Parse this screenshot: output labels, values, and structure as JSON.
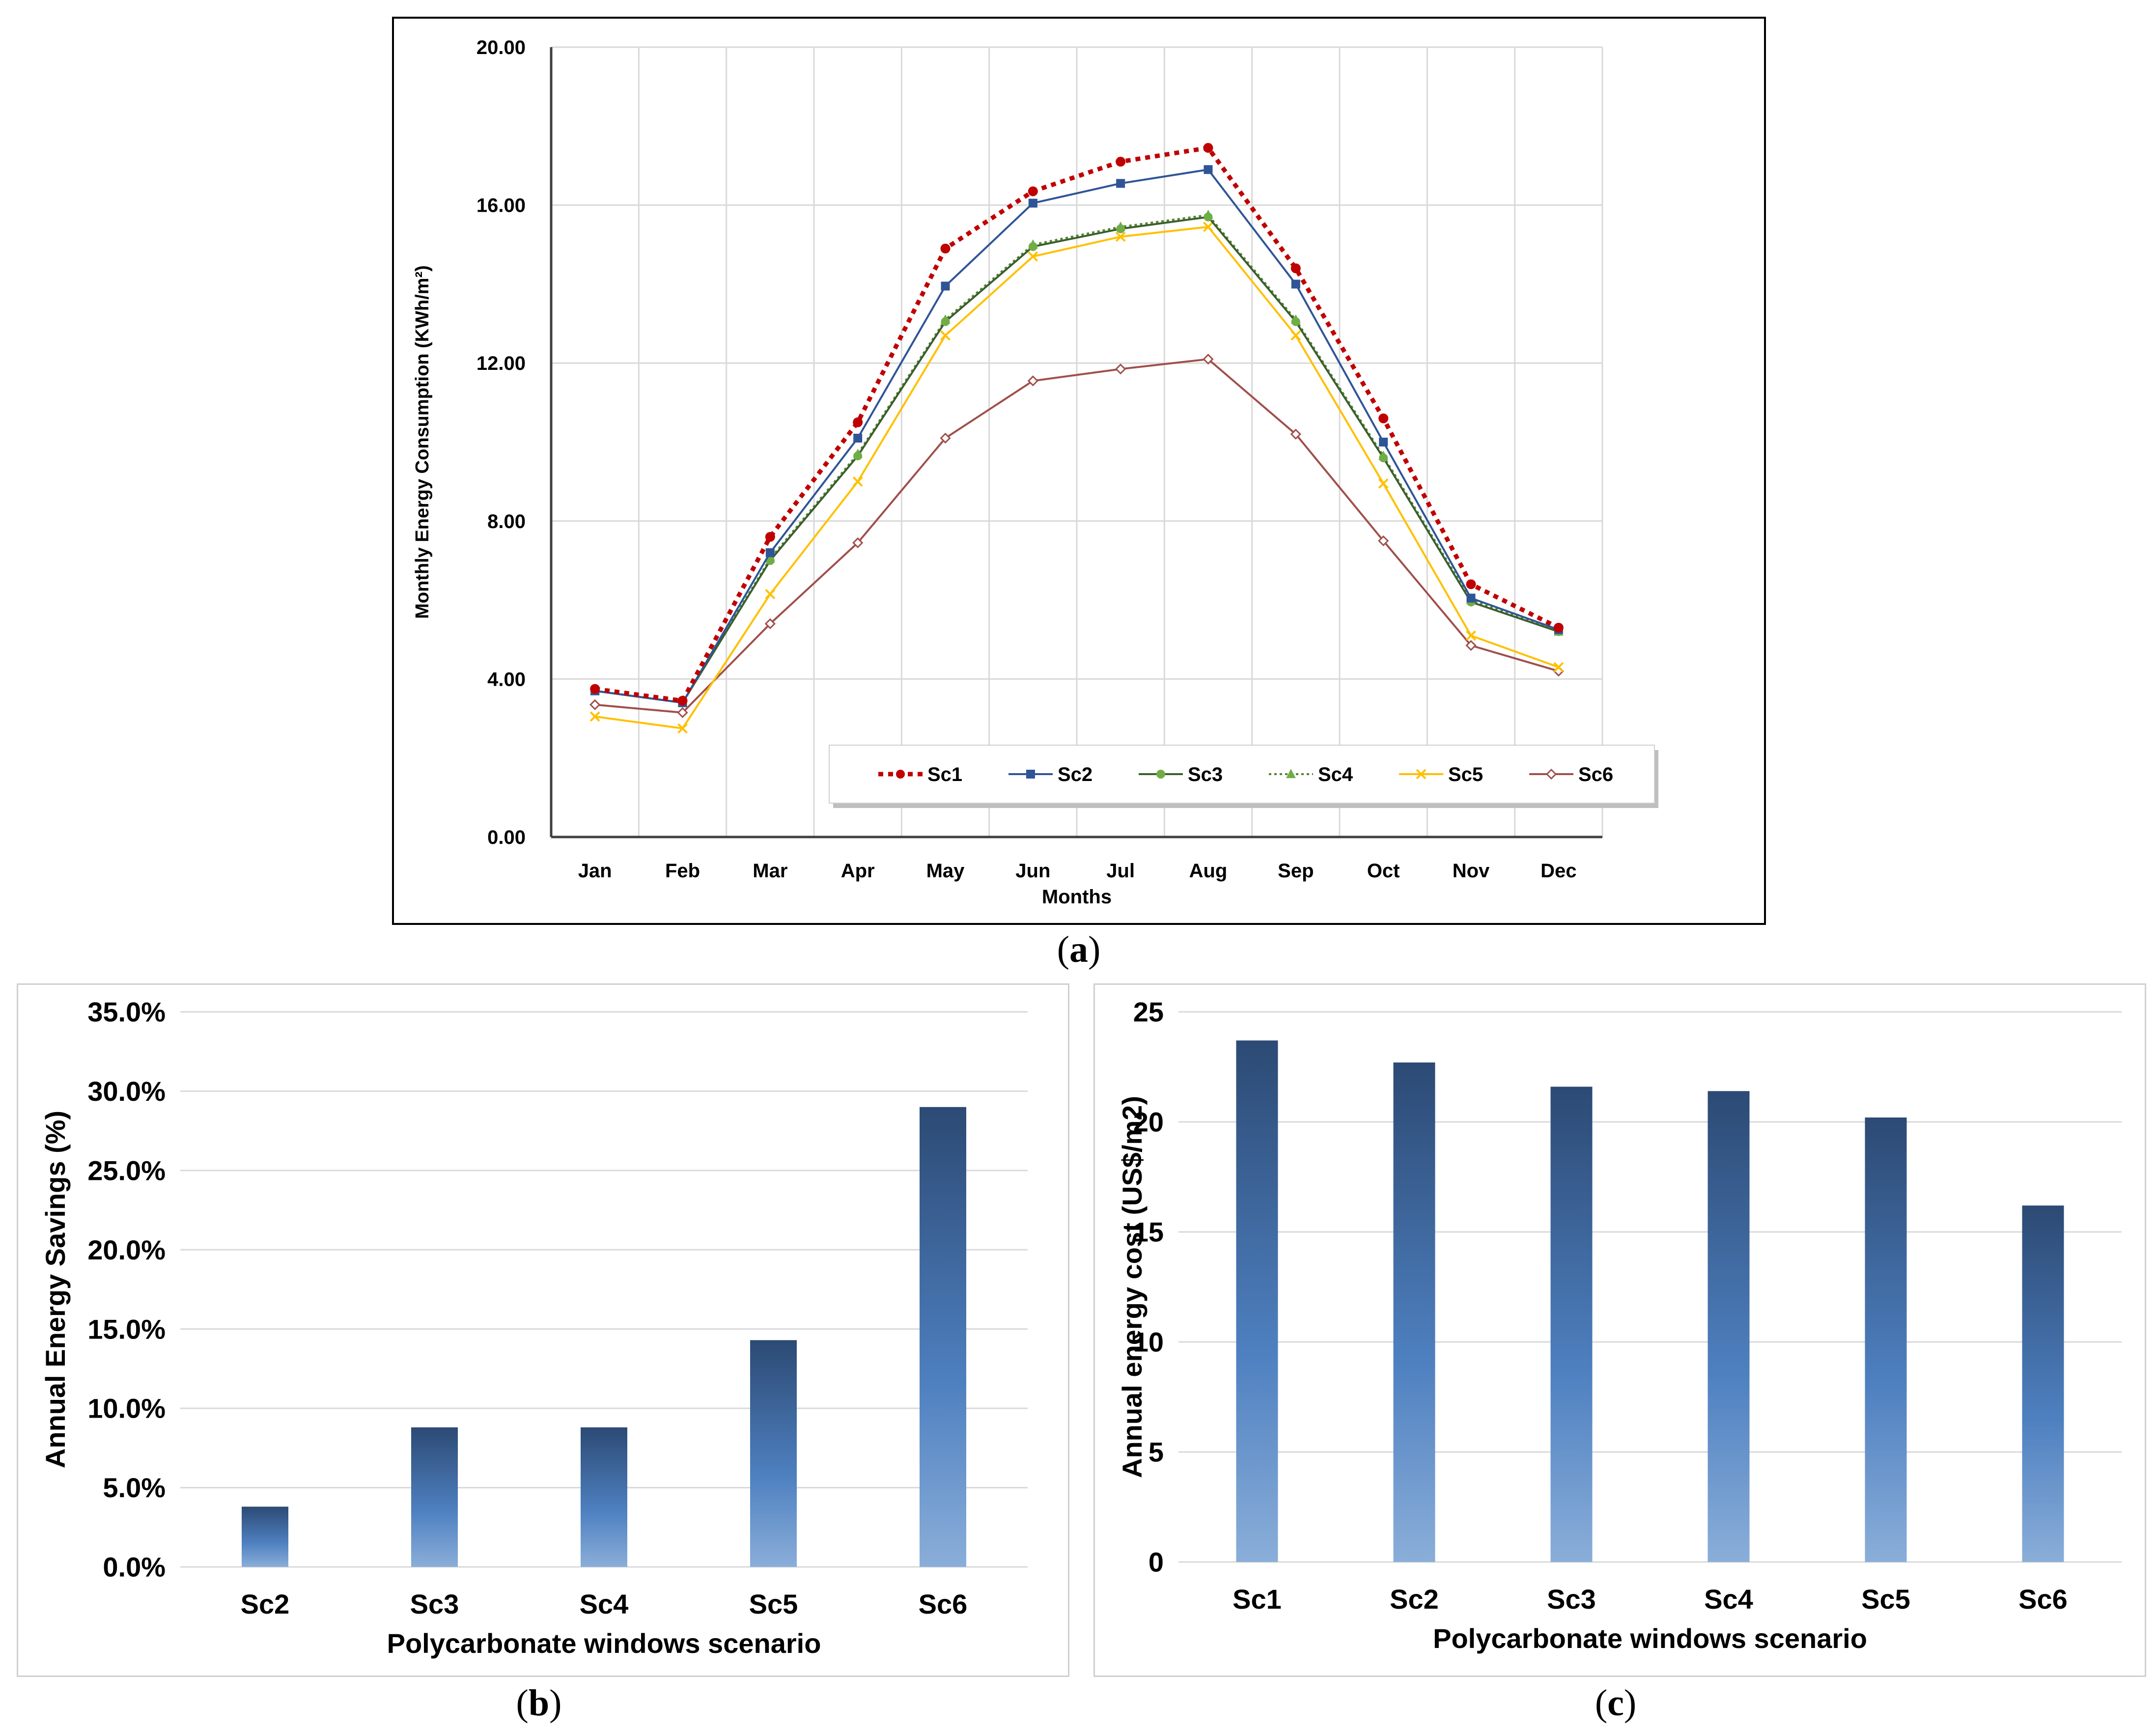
{
  "captions": {
    "a": "a",
    "b": "b",
    "c": "c"
  },
  "chart_data": [
    {
      "id": "a",
      "type": "line",
      "xlabel": "Months",
      "ylabel": "Monthly Energy Consumption (KWh/m²)",
      "ylim": [
        0,
        20
      ],
      "yticks": [
        "0.00",
        "4.00",
        "8.00",
        "12.00",
        "16.00",
        "20.00"
      ],
      "grid": true,
      "legend_position": "bottom inside plot",
      "categories": [
        "Jan",
        "Feb",
        "Mar",
        "Apr",
        "May",
        "Jun",
        "Jul",
        "Aug",
        "Sep",
        "Oct",
        "Nov",
        "Dec"
      ],
      "series": [
        {
          "name": "Sc1",
          "color": "#c00000",
          "marker": "circle",
          "dash": true,
          "values": [
            3.75,
            3.45,
            7.6,
            10.5,
            14.9,
            16.35,
            17.1,
            17.45,
            14.4,
            10.6,
            6.4,
            5.3
          ]
        },
        {
          "name": "Sc2",
          "color": "#2f5597",
          "marker": "square",
          "dash": false,
          "values": [
            3.7,
            3.4,
            7.2,
            10.1,
            13.95,
            16.05,
            16.55,
            16.9,
            14.0,
            10.0,
            6.05,
            5.25
          ]
        },
        {
          "name": "Sc3",
          "color": "#3a5f2a",
          "marker": "circle",
          "mcolor": "#70ad47",
          "dash": false,
          "values": [
            3.7,
            3.4,
            7.0,
            9.65,
            13.05,
            14.95,
            15.4,
            15.7,
            13.05,
            9.6,
            5.95,
            5.2
          ]
        },
        {
          "name": "Sc4",
          "color": "#548235",
          "marker": "triangle",
          "mcolor": "#70ad47",
          "dash": "dot",
          "values": [
            3.7,
            3.4,
            7.05,
            9.7,
            13.1,
            15.0,
            15.45,
            15.75,
            13.1,
            9.65,
            6.0,
            5.2
          ]
        },
        {
          "name": "Sc5",
          "color": "#ffc000",
          "marker": "x",
          "dash": false,
          "values": [
            3.05,
            2.75,
            6.15,
            9.0,
            12.7,
            14.7,
            15.2,
            15.45,
            12.7,
            8.95,
            5.1,
            4.3
          ]
        },
        {
          "name": "Sc6",
          "color": "#a04f4b",
          "marker": "diamond",
          "dash": false,
          "values": [
            3.35,
            3.15,
            5.4,
            7.45,
            10.1,
            11.55,
            11.85,
            12.1,
            10.2,
            7.5,
            4.85,
            4.2
          ]
        }
      ]
    },
    {
      "id": "b",
      "type": "bar",
      "xlabel": "Polycarbonate windows scenario",
      "ylabel": "Annual Energy Savings (%)",
      "ylim": [
        0,
        35
      ],
      "yticks": [
        "0.0%",
        "5.0%",
        "10.0%",
        "15.0%",
        "20.0%",
        "25.0%",
        "30.0%",
        "35.0%"
      ],
      "grid": true,
      "categories": [
        "Sc2",
        "Sc3",
        "Sc4",
        "Sc5",
        "Sc6"
      ],
      "values": [
        3.8,
        8.8,
        8.8,
        14.3,
        29.0
      ]
    },
    {
      "id": "c",
      "type": "bar",
      "xlabel": "Polycarbonate windows scenario",
      "ylabel": "Annual energy cost (US$/m2)",
      "ylim": [
        0,
        25
      ],
      "yticks": [
        "0",
        "5",
        "10",
        "15",
        "20",
        "25"
      ],
      "grid": true,
      "categories": [
        "Sc1",
        "Sc2",
        "Sc3",
        "Sc4",
        "Sc5",
        "Sc6"
      ],
      "values": [
        23.7,
        22.7,
        21.6,
        21.4,
        20.2,
        16.2
      ]
    }
  ]
}
